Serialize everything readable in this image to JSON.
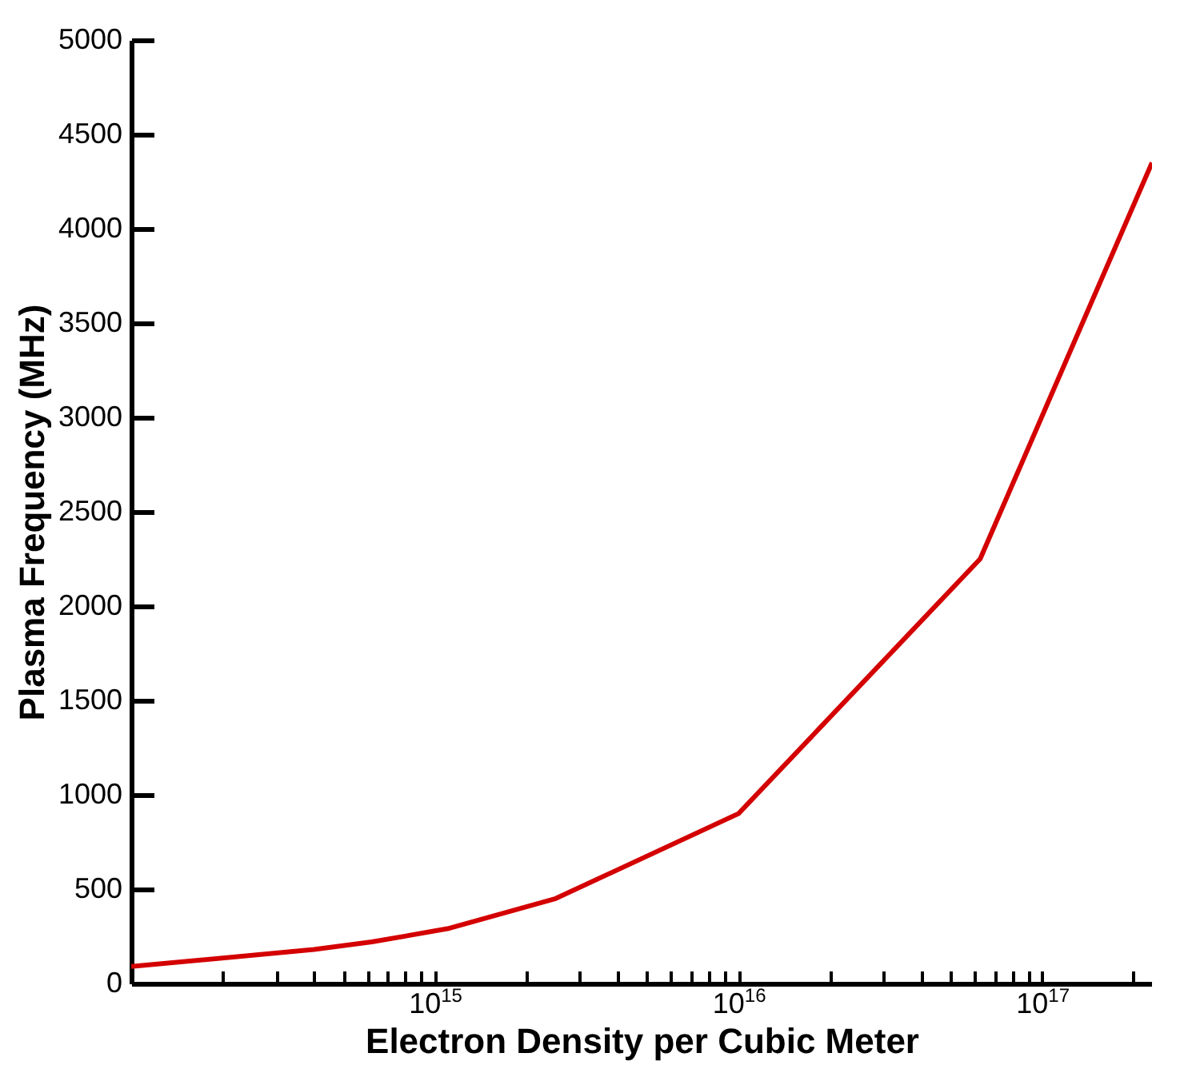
{
  "chart_data": {
    "type": "line",
    "xlabel": "Electron Density per Cubic Meter",
    "ylabel": "Plasma Frequency (MHz)",
    "x": [
      100000000000000.0,
      400000000000000.0,
      620000000000000.0,
      1100000000000000.0,
      2500000000000000.0,
      1e+16,
      6.25e+16,
      2.3e+17
    ],
    "series": [
      {
        "color": "#d40000",
        "values": [
          90,
          180,
          220,
          290,
          450,
          900,
          2250,
          4350
        ]
      }
    ],
    "log": "x",
    "xlim": [
      100000000000000.0,
      2.3e+17
    ],
    "ylim": [
      0,
      5000
    ],
    "xticks": [
      {
        "value": 200000000000000.0,
        "label": null
      },
      {
        "value": 300000000000000.0,
        "label": null
      },
      {
        "value": 400000000000000.0,
        "label": null
      },
      {
        "value": 500000000000000.0,
        "label": null
      },
      {
        "value": 600000000000000.0,
        "label": null
      },
      {
        "value": 700000000000000.0,
        "label": null
      },
      {
        "value": 800000000000000.0,
        "label": null
      },
      {
        "value": 900000000000000.0,
        "label": null
      },
      {
        "value": 1000000000000000.0,
        "label": "10$^{15}$"
      },
      {
        "value": 2000000000000000.0,
        "label": null
      },
      {
        "value": 3000000000000000.0,
        "label": null
      },
      {
        "value": 4000000000000000.0,
        "label": null
      },
      {
        "value": 5000000000000000.0,
        "label": null
      },
      {
        "value": 6000000000000000.0,
        "label": null
      },
      {
        "value": 7000000000000000.0,
        "label": null
      },
      {
        "value": 8000000000000000.0,
        "label": null
      },
      {
        "value": 9000000000000000.0,
        "label": null
      },
      {
        "value": 1e+16,
        "label": "10$^{16}$"
      },
      {
        "value": 2e+16,
        "label": null
      },
      {
        "value": 3e+16,
        "label": null
      },
      {
        "value": 4e+16,
        "label": null
      },
      {
        "value": 5e+16,
        "label": null
      },
      {
        "value": 6e+16,
        "label": null
      },
      {
        "value": 7e+16,
        "label": null
      },
      {
        "value": 8e+16,
        "label": null
      },
      {
        "value": 9e+16,
        "label": null
      },
      {
        "value": 1e+17,
        "label": "10$^{17}$"
      },
      {
        "value": 2e+17,
        "label": null
      }
    ],
    "yticks": [
      0,
      500,
      1000,
      1500,
      2000,
      2500,
      3000,
      3500,
      4000,
      4500,
      5000
    ],
    "grid": false,
    "legend": false,
    "line_style": "solid"
  }
}
